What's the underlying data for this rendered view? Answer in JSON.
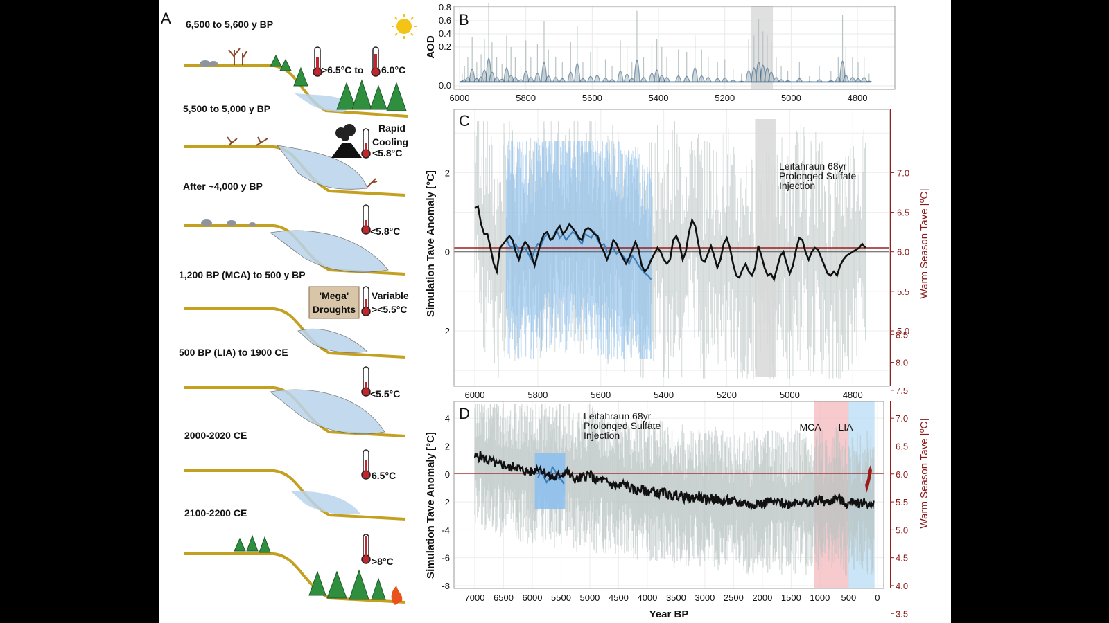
{
  "panel_a": {
    "letter": "A",
    "stages": [
      {
        "label": "6,500 to 5,600 y BP",
        "temp": ">6.5°C to",
        "temp2": "6.0°C"
      },
      {
        "label": "5,500 to 5,000 y BP",
        "temp": "Rapid",
        "temp2": "Cooling",
        "temp3": "<5.8°C"
      },
      {
        "label": "After ~4,000 y BP",
        "temp": "<5.8°C"
      },
      {
        "label": "1,200 BP (MCA) to 500 y BP",
        "temp": "Variable",
        "temp2": "><5.5°C",
        "drought1": "'Mega'",
        "drought2": "Droughts"
      },
      {
        "label": "500 BP (LIA) to 1900 CE",
        "temp": "<5.5°C"
      },
      {
        "label": "2000-2020 CE",
        "temp": "6.5°C"
      },
      {
        "label": "2100-2200 CE",
        "temp": ">8°C"
      }
    ]
  },
  "colors": {
    "soil": "#c4a021",
    "ice": "#b9d4ec",
    "tree": "#2f8f3f",
    "mean_line": "#111111",
    "ensemble": "#b9c4c2",
    "blue_series": "#3f7fb8",
    "blue_band": "#8ec1ee",
    "red_ref": "#9b1b1b",
    "mca_band": "#f4b8bd",
    "lia_band": "#b7dcf4",
    "shade": "#d8d8d8"
  },
  "chart_data": [
    {
      "panel": "B",
      "type": "area",
      "ylabel": "AOD",
      "xlim": [
        6000,
        4750
      ],
      "x_ticks": [
        6000,
        5800,
        5600,
        5400,
        5200,
        5000,
        4800
      ],
      "y_ticks": [
        "0.0",
        "0.2",
        "0.4",
        "0.6",
        "0.8"
      ],
      "y_tick_values": [
        0.0,
        0.2,
        0.4,
        0.6,
        0.8
      ],
      "shaded_interval": [
        5120,
        5055
      ],
      "peaks": [
        {
          "x": 5992,
          "y": 0.05
        },
        {
          "x": 5985,
          "y": 0.08
        },
        {
          "x": 5975,
          "y": 0.12
        },
        {
          "x": 5962,
          "y": 0.28
        },
        {
          "x": 5948,
          "y": 0.1
        },
        {
          "x": 5935,
          "y": 0.13
        },
        {
          "x": 5925,
          "y": 0.26
        },
        {
          "x": 5912,
          "y": 0.7
        },
        {
          "x": 5902,
          "y": 0.22
        },
        {
          "x": 5888,
          "y": 0.12
        },
        {
          "x": 5872,
          "y": 0.09
        },
        {
          "x": 5858,
          "y": 0.3
        },
        {
          "x": 5845,
          "y": 0.16
        },
        {
          "x": 5832,
          "y": 0.12
        },
        {
          "x": 5815,
          "y": 0.08
        },
        {
          "x": 5800,
          "y": 0.24
        },
        {
          "x": 5785,
          "y": 0.12
        },
        {
          "x": 5765,
          "y": 0.2
        },
        {
          "x": 5745,
          "y": 0.48
        },
        {
          "x": 5732,
          "y": 0.15
        },
        {
          "x": 5710,
          "y": 0.12
        },
        {
          "x": 5690,
          "y": 0.1
        },
        {
          "x": 5665,
          "y": 0.22
        },
        {
          "x": 5645,
          "y": 0.42
        },
        {
          "x": 5628,
          "y": 0.1
        },
        {
          "x": 5605,
          "y": 0.14
        },
        {
          "x": 5585,
          "y": 0.16
        },
        {
          "x": 5560,
          "y": 0.11
        },
        {
          "x": 5540,
          "y": 0.08
        },
        {
          "x": 5515,
          "y": 0.24
        },
        {
          "x": 5495,
          "y": 0.18
        },
        {
          "x": 5480,
          "y": 0.1
        },
        {
          "x": 5465,
          "y": 0.6
        },
        {
          "x": 5445,
          "y": 0.12
        },
        {
          "x": 5420,
          "y": 0.2
        },
        {
          "x": 5405,
          "y": 0.26
        },
        {
          "x": 5390,
          "y": 0.16
        },
        {
          "x": 5375,
          "y": 0.12
        },
        {
          "x": 5340,
          "y": 0.15
        },
        {
          "x": 5315,
          "y": 0.14
        },
        {
          "x": 5290,
          "y": 0.3
        },
        {
          "x": 5270,
          "y": 0.15
        },
        {
          "x": 5250,
          "y": 0.12
        },
        {
          "x": 5222,
          "y": 0.1
        },
        {
          "x": 5200,
          "y": 0.11
        },
        {
          "x": 5175,
          "y": 0.07
        },
        {
          "x": 5150,
          "y": 0.05
        },
        {
          "x": 5128,
          "y": 0.25
        },
        {
          "x": 5112,
          "y": 0.3
        },
        {
          "x": 5098,
          "y": 0.5
        },
        {
          "x": 5085,
          "y": 0.35
        },
        {
          "x": 5072,
          "y": 0.3
        },
        {
          "x": 5060,
          "y": 0.22
        },
        {
          "x": 5045,
          "y": 0.12
        },
        {
          "x": 5030,
          "y": 0.08
        },
        {
          "x": 5010,
          "y": 0.06
        },
        {
          "x": 4975,
          "y": 0.1
        },
        {
          "x": 4945,
          "y": 0.04
        },
        {
          "x": 4915,
          "y": 0.08
        },
        {
          "x": 4880,
          "y": 0.06
        },
        {
          "x": 4858,
          "y": 0.12
        },
        {
          "x": 4845,
          "y": 0.55
        },
        {
          "x": 4835,
          "y": 0.16
        },
        {
          "x": 4815,
          "y": 0.12
        },
        {
          "x": 4798,
          "y": 0.1
        },
        {
          "x": 4780,
          "y": 0.12
        },
        {
          "x": 4765,
          "y": 0.05
        }
      ]
    },
    {
      "panel": "C",
      "type": "line",
      "ylabel": "Simulation Tave Anomaly [°C]",
      "ylabel_right": "Warm Season Tave [ºC]",
      "xlim": [
        6000,
        4750
      ],
      "ylim": [
        -3.4,
        3.6
      ],
      "x_ticks": [
        6000,
        5800,
        5600,
        5400,
        5200,
        5000,
        4800
      ],
      "y_ticks": [
        "-2",
        "0",
        "2"
      ],
      "y_tick_values": [
        -2,
        0,
        2
      ],
      "right_ticks": [
        "5.0",
        "5.5",
        "6.0",
        "6.5",
        "7.0"
      ],
      "right_tick_values": [
        5.0,
        5.5,
        6.0,
        6.5,
        7.0
      ],
      "right_map": {
        "value_at_zero": 6.0,
        "anomaly_per_degree": 2.0
      },
      "ref_line_y": 0.1,
      "shaded_interval": [
        5110,
        5045
      ],
      "annotation": [
        "Leitahraun 68yr",
        "Prolonged Sulfate",
        "Injection"
      ],
      "series": [
        {
          "role": "ensemble mean",
          "x": [
            6000,
            5990,
            5980,
            5970,
            5960,
            5950,
            5940,
            5930,
            5920,
            5910,
            5900,
            5890,
            5880,
            5870,
            5860,
            5850,
            5840,
            5830,
            5820,
            5810,
            5800,
            5790,
            5780,
            5770,
            5760,
            5750,
            5740,
            5730,
            5720,
            5710,
            5700,
            5690,
            5680,
            5670,
            5660,
            5650,
            5640,
            5630,
            5620,
            5610,
            5600,
            5590,
            5580,
            5570,
            5560,
            5550,
            5540,
            5530,
            5520,
            5510,
            5500,
            5490,
            5480,
            5470,
            5460,
            5450,
            5440,
            5430,
            5420,
            5410,
            5400,
            5390,
            5380,
            5370,
            5360,
            5350,
            5340,
            5330,
            5320,
            5310,
            5300,
            5290,
            5280,
            5270,
            5260,
            5250,
            5240,
            5230,
            5220,
            5210,
            5200,
            5190,
            5180,
            5170,
            5160,
            5150,
            5140,
            5130,
            5120,
            5110,
            5100,
            5090,
            5080,
            5070,
            5060,
            5050,
            5040,
            5030,
            5020,
            5010,
            5000,
            4990,
            4980,
            4970,
            4960,
            4950,
            4940,
            4930,
            4920,
            4910,
            4900,
            4890,
            4880,
            4870,
            4860,
            4850,
            4840,
            4830,
            4820,
            4810,
            4800,
            4790,
            4780,
            4770,
            4760
          ],
          "y": [
            1.1,
            1.15,
            0.7,
            0.45,
            0.45,
            0.1,
            -0.3,
            -0.5,
            0.1,
            0.2,
            0.3,
            0.4,
            0.3,
            0.0,
            -0.2,
            0.1,
            0.25,
            0.15,
            -0.1,
            -0.35,
            -0.05,
            0.25,
            0.45,
            0.5,
            0.3,
            0.35,
            0.55,
            0.65,
            0.45,
            0.55,
            0.7,
            0.6,
            0.5,
            0.35,
            0.3,
            0.55,
            0.6,
            0.55,
            0.45,
            0.4,
            0.15,
            0.0,
            -0.2,
            0.0,
            0.3,
            0.2,
            0.0,
            -0.15,
            -0.3,
            -0.15,
            0.05,
            0.25,
            0.05,
            -0.35,
            -0.5,
            -0.4,
            -0.2,
            -0.05,
            0.1,
            0.0,
            -0.2,
            -0.3,
            -0.2,
            0.3,
            0.4,
            0.2,
            -0.2,
            0.0,
            0.5,
            0.8,
            0.65,
            0.2,
            -0.2,
            -0.25,
            -0.05,
            0.15,
            -0.1,
            -0.4,
            -0.2,
            0.2,
            0.35,
            0.1,
            -0.3,
            -0.6,
            -0.65,
            -0.45,
            -0.3,
            -0.5,
            -0.6,
            -0.4,
            0.15,
            -0.1,
            -0.4,
            -0.6,
            -0.55,
            -0.7,
            -0.4,
            -0.1,
            0.0,
            -0.3,
            -0.55,
            -0.35,
            0.05,
            0.35,
            0.3,
            0.0,
            -0.2,
            0.0,
            0.1,
            0.05,
            -0.15,
            -0.35,
            -0.55,
            -0.6,
            -0.5,
            -0.6,
            -0.35,
            -0.2,
            -0.1,
            -0.05,
            0.0,
            0.05,
            0.1,
            0.2,
            0.1
          ]
        },
        {
          "role": "blue series",
          "x": [
            5900,
            5890,
            5880,
            5870,
            5860,
            5850,
            5840,
            5830,
            5820,
            5810,
            5800,
            5790,
            5780,
            5770,
            5760,
            5750,
            5740,
            5730,
            5720,
            5710,
            5700,
            5690,
            5680,
            5670,
            5660,
            5650,
            5640,
            5630,
            5620,
            5610,
            5600,
            5590,
            5580,
            5570,
            5560,
            5550,
            5540,
            5530,
            5520,
            5510,
            5500,
            5490,
            5480,
            5470,
            5460,
            5450,
            5440
          ],
          "y": [
            0.35,
            0.15,
            0.1,
            0.2,
            0.0,
            0.05,
            0.1,
            -0.05,
            -0.2,
            0.05,
            0.2,
            0.15,
            0.35,
            0.45,
            0.3,
            0.4,
            0.55,
            0.35,
            0.45,
            0.3,
            0.4,
            0.5,
            0.45,
            0.3,
            0.2,
            0.45,
            0.4,
            0.35,
            0.5,
            0.3,
            0.15,
            0.2,
            0.0,
            0.05,
            0.1,
            -0.05,
            0.0,
            -0.1,
            -0.2,
            -0.3,
            -0.1,
            -0.2,
            -0.35,
            -0.45,
            -0.55,
            -0.6,
            -0.7
          ]
        }
      ],
      "uncertainty_band": {
        "x_range": [
          5900,
          5440
        ],
        "upper_peak": 2.8,
        "lower_peak": -2.7
      }
    },
    {
      "panel": "D",
      "type": "line",
      "xlabel": "Year BP",
      "ylabel": "Simulation Tave Anomaly [°C]",
      "ylabel_right": "Warm Season Tave [ºC]",
      "xlim": [
        7000,
        -50
      ],
      "ylim": [
        -8.2,
        5.2
      ],
      "x_ticks": [
        7000,
        6500,
        6000,
        5500,
        5000,
        4500,
        4000,
        3500,
        3000,
        2500,
        2000,
        1500,
        1000,
        500,
        0
      ],
      "y_ticks": [
        "-8",
        "-6",
        "-4",
        "-2",
        "0",
        "2",
        "4"
      ],
      "y_tick_values": [
        -8,
        -6,
        -4,
        -2,
        0,
        2,
        4
      ],
      "right_ticks": [
        "3.5",
        "4.0",
        "4.5",
        "5.0",
        "5.5",
        "6.0",
        "6.5",
        "7.0",
        "7.5",
        "8.0",
        "8.5"
      ],
      "right_tick_values": [
        3.5,
        4.0,
        4.5,
        5.0,
        5.5,
        6.0,
        6.5,
        7.0,
        7.5,
        8.0,
        8.5
      ],
      "right_map": {
        "value_at_zero": 6.0,
        "anomaly_per_degree": 4.0
      },
      "ref_line_y": 0.05,
      "shaded_intervals": [
        {
          "label": "MCA",
          "x_range": [
            1100,
            500
          ]
        },
        {
          "label": "LIA",
          "x_range": [
            500,
            50
          ]
        }
      ],
      "annotation": [
        "Leitahraun 68yr",
        "Prolonged Sulfate",
        "Injection"
      ],
      "series": [
        {
          "role": "ensemble mean",
          "x": [
            7000,
            6900,
            6800,
            6700,
            6600,
            6500,
            6400,
            6300,
            6200,
            6100,
            6000,
            5900,
            5800,
            5700,
            5600,
            5500,
            5400,
            5300,
            5200,
            5100,
            5000,
            4900,
            4800,
            4700,
            4600,
            4500,
            4400,
            4300,
            4200,
            4100,
            4000,
            3900,
            3800,
            3700,
            3600,
            3500,
            3400,
            3300,
            3200,
            3100,
            3000,
            2900,
            2800,
            2700,
            2600,
            2500,
            2400,
            2300,
            2200,
            2100,
            2000,
            1900,
            1800,
            1700,
            1600,
            1500,
            1400,
            1300,
            1200,
            1100,
            1000,
            900,
            800,
            700,
            600,
            500,
            400,
            300,
            200,
            100,
            50
          ],
          "y": [
            1.2,
            1.3,
            1.0,
            0.9,
            0.6,
            0.7,
            0.4,
            0.6,
            0.3,
            0.2,
            0.1,
            0.5,
            0.2,
            -0.2,
            -0.3,
            0.0,
            0.2,
            -0.3,
            -0.4,
            -0.2,
            0.0,
            -0.5,
            -0.4,
            -0.6,
            -0.8,
            -0.9,
            -0.7,
            -1.0,
            -1.2,
            -1.1,
            -1.3,
            -1.2,
            -1.4,
            -1.3,
            -1.6,
            -1.5,
            -1.6,
            -1.8,
            -1.7,
            -1.6,
            -1.9,
            -1.7,
            -1.8,
            -2.0,
            -1.9,
            -2.0,
            -2.1,
            -2.0,
            -2.3,
            -2.0,
            -2.2,
            -1.9,
            -2.1,
            -2.0,
            -2.2,
            -2.1,
            -1.9,
            -2.0,
            -2.2,
            -2.0,
            -1.8,
            -2.1,
            -1.9,
            -1.7,
            -2.0,
            -2.2,
            -1.9,
            -2.1,
            -2.0,
            -2.4,
            -2.2
          ]
        },
        {
          "role": "blue series",
          "x": [
            5900,
            5850,
            5800,
            5750,
            5700,
            5650,
            5600,
            5550,
            5500,
            5450
          ],
          "y": [
            -0.3,
            0.3,
            -0.2,
            -0.6,
            -0.3,
            0.5,
            0.2,
            -0.3,
            -0.4,
            -0.7
          ]
        }
      ],
      "uncertainty_band": {
        "x_range": [
          5950,
          5430
        ],
        "upper": 1.5,
        "lower": -2.5
      }
    }
  ]
}
